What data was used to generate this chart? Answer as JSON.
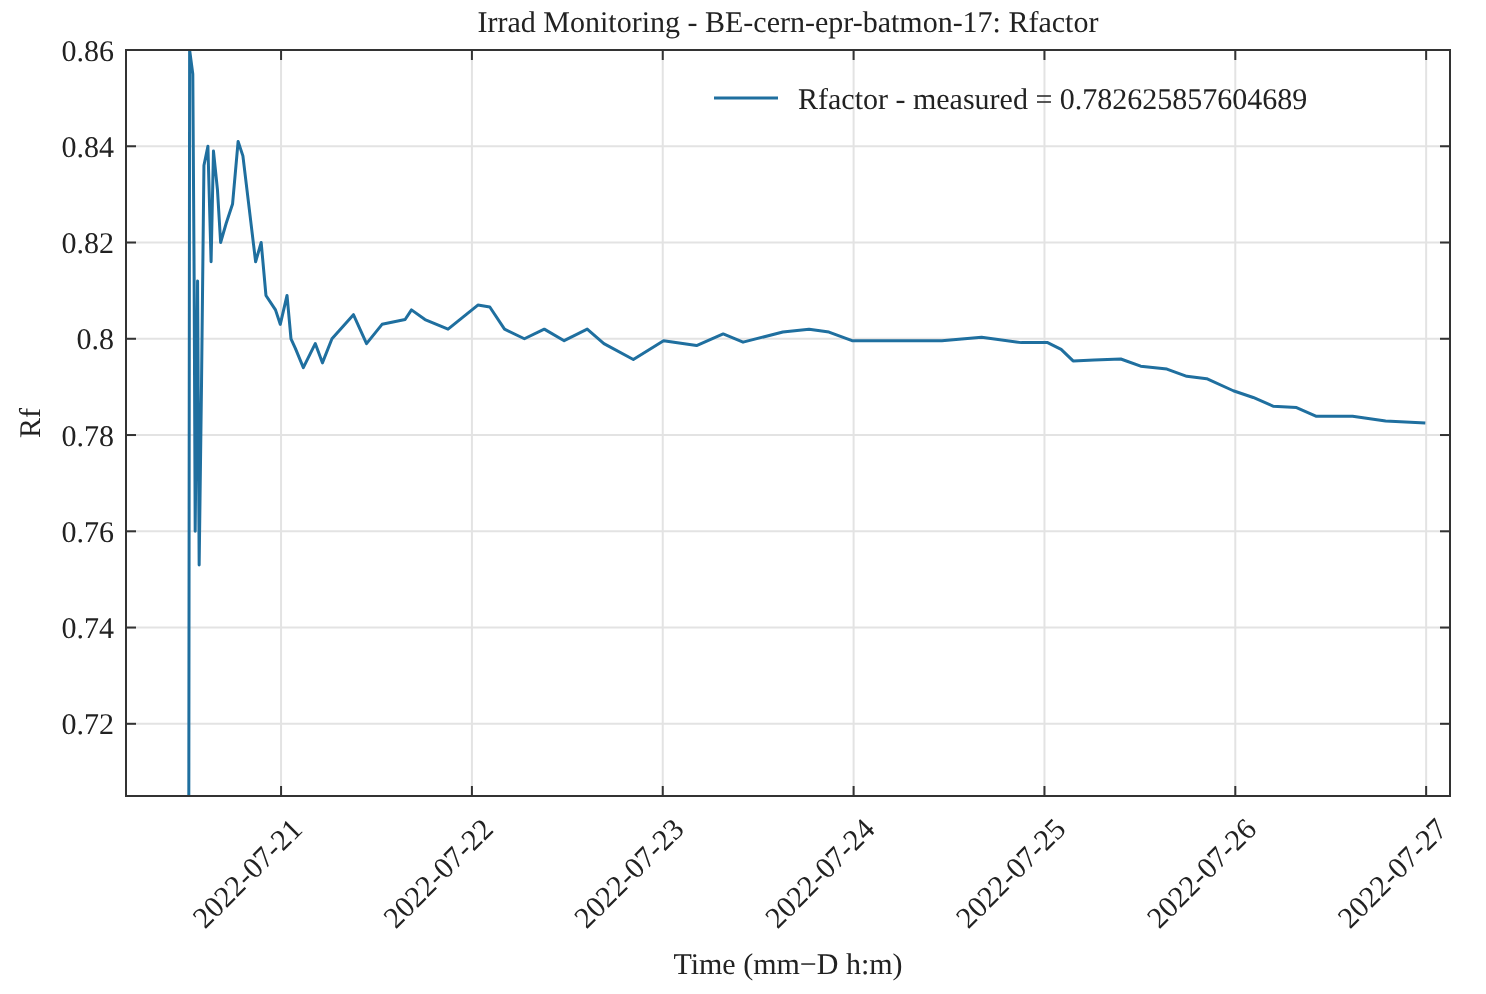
{
  "chart_data": {
    "type": "line",
    "title": "Irrad Monitoring - BE-cern-epr-batmon-17: Rfactor",
    "xlabel": "Time (mm−D h:m)",
    "ylabel": "Rf",
    "x": [
      "2022-07-20T12:24",
      "2022-07-20T12:30",
      "2022-07-20T12:54",
      "2022-07-20T13:04",
      "2022-07-20T13:12",
      "2022-07-20T13:30",
      "2022-07-20T13:42",
      "2022-07-20T14:00",
      "2022-07-20T14:18",
      "2022-07-20T14:48",
      "2022-07-20T15:12",
      "2022-07-20T15:30",
      "2022-07-20T16:00",
      "2022-07-20T16:24",
      "2022-07-20T17:06",
      "2022-07-20T17:54",
      "2022-07-20T18:36",
      "2022-07-20T19:12",
      "2022-07-20T20:00",
      "2022-07-20T20:48",
      "2022-07-20T21:30",
      "2022-07-20T22:06",
      "2022-07-20T23:18",
      "2022-07-20T23:54",
      "2022-07-21T00:45",
      "2022-07-21T01:15",
      "2022-07-21T01:48",
      "2022-07-21T02:48",
      "2022-07-21T04:18",
      "2022-07-21T05:12",
      "2022-07-21T06:24",
      "2022-07-21T09:06",
      "2022-07-21T10:45",
      "2022-07-21T12:42",
      "2022-07-21T15:36",
      "2022-07-21T16:24",
      "2022-07-21T18:06",
      "2022-07-21T21:00",
      "2022-07-22T00:45",
      "2022-07-22T02:15",
      "2022-07-22T04:06",
      "2022-07-22T06:36",
      "2022-07-22T09:06",
      "2022-07-22T11:36",
      "2022-07-22T14:30",
      "2022-07-22T16:36",
      "2022-07-22T20:18",
      "2022-07-23T00:06",
      "2022-07-23T04:15",
      "2022-07-23T07:36",
      "2022-07-23T10:06",
      "2022-07-23T15:06",
      "2022-07-23T18:24",
      "2022-07-23T20:54",
      "2022-07-23T23:48",
      "2022-07-24T06:54",
      "2022-07-24T11:06",
      "2022-07-24T16:06",
      "2022-07-24T21:06",
      "2022-07-25T00:24",
      "2022-07-25T02:06",
      "2022-07-25T03:36",
      "2022-07-25T06:15",
      "2022-07-25T09:36",
      "2022-07-25T12:06",
      "2022-07-25T15:24",
      "2022-07-25T17:54",
      "2022-07-25T20:24",
      "2022-07-25T23:45",
      "2022-07-26T02:15",
      "2022-07-26T04:45",
      "2022-07-26T07:42",
      "2022-07-26T10:12",
      "2022-07-26T14:45",
      "2022-07-26T18:54",
      "2022-07-26T23:54"
    ],
    "series": [
      {
        "name": "Rfactor - measured = 0.782625857604689",
        "color": "#1f6f9f",
        "values": [
          0.705,
          0.86,
          0.855,
          0.813,
          0.76,
          0.812,
          0.753,
          0.791,
          0.836,
          0.84,
          0.816,
          0.839,
          0.831,
          0.82,
          0.824,
          0.828,
          0.841,
          0.838,
          0.827,
          0.816,
          0.82,
          0.809,
          0.806,
          0.803,
          0.809,
          0.8,
          0.798,
          0.794,
          0.799,
          0.795,
          0.8,
          0.805,
          0.799,
          0.803,
          0.804,
          0.806,
          0.804,
          0.802,
          0.807,
          0.8066,
          0.802,
          0.8,
          0.802,
          0.7996,
          0.802,
          0.799,
          0.7957,
          0.7996,
          0.7986,
          0.801,
          0.7993,
          0.8014,
          0.802,
          0.8014,
          0.7996,
          0.7996,
          0.7996,
          0.8003,
          0.7992,
          0.7992,
          0.7978,
          0.7954,
          0.7956,
          0.7958,
          0.7943,
          0.7937,
          0.7922,
          0.7917,
          0.7892,
          0.7878,
          0.786,
          0.7857,
          0.7839,
          0.7839,
          0.7829,
          0.7825
        ]
      }
    ],
    "xlim": [
      "2022-07-20T04:30",
      "2022-07-27T03:00"
    ],
    "xticks": [
      "2022-07-21",
      "2022-07-22",
      "2022-07-23",
      "2022-07-24",
      "2022-07-25",
      "2022-07-26",
      "2022-07-27"
    ],
    "ylim": [
      0.705,
      0.86
    ],
    "yticks": [
      0.72,
      0.74,
      0.76,
      0.78,
      0.8,
      0.82,
      0.84,
      0.86
    ],
    "grid": true,
    "legend": "top right",
    "marker": "none",
    "line_style": "solid"
  }
}
